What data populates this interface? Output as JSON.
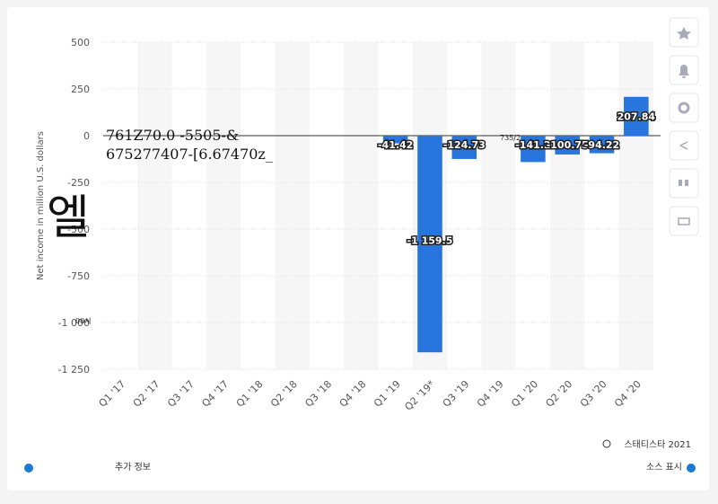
{
  "chart_data": {
    "type": "bar",
    "ylabel": "Net income in million U.S. dollars",
    "categories": [
      "Q1 '17",
      "Q2 '17",
      "Q3 '17",
      "Q4 '17",
      "Q1 '18",
      "Q2 '18",
      "Q3 '18",
      "Q4 '18",
      "Q1 '19",
      "Q2 '19*",
      "Q3 '19",
      "Q4 '19",
      "Q1 '20",
      "Q2 '20",
      "Q3 '20",
      "Q4 '20"
    ],
    "values": [
      null,
      null,
      null,
      null,
      null,
      null,
      null,
      null,
      -41.42,
      -1159.5,
      -124.73,
      null,
      -141.2,
      -100.75,
      -94.22,
      207.84
    ],
    "value_labels": [
      null,
      null,
      null,
      null,
      null,
      null,
      null,
      null,
      "-41.42",
      "-1 159.5",
      "-124.73",
      null,
      "-141.2",
      "-100.75",
      "-94.22",
      "207.84"
    ],
    "color": "#2876dd",
    "ylim": [
      -1250,
      500
    ],
    "yticks": [
      500,
      250,
      0,
      -250,
      -500,
      -750,
      {
        "value": -1000,
        "label": "-1 000"
      },
      {
        "value": -1250,
        "label": "-1 250"
      }
    ],
    "grid": true
  },
  "overlays": [
    "761Z70.0  -5505-&",
    "675277407-[6.67470z_",
    "엘",
    "00시",
    "735/2"
  ],
  "footer": {
    "copyright": "스태티스타 2021",
    "more_info": "추가 정보",
    "show_source": "소스 표시"
  }
}
